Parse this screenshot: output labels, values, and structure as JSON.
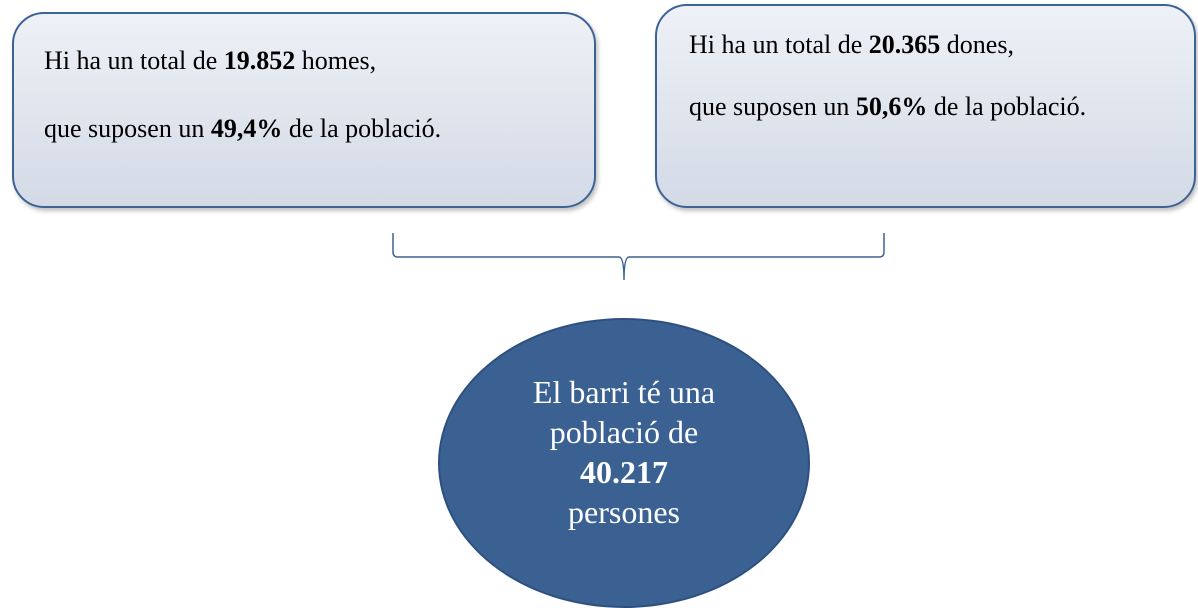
{
  "boxes": [
    {
      "lines": [
        {
          "before": "Hi ha un total de",
          "bold": "19.852",
          "after": "homes,"
        },
        {
          "before": "que suposen un",
          "bold": "49,4%",
          "after": "de la població."
        }
      ]
    },
    {
      "lines": [
        {
          "before": "Hi ha un total de",
          "bold": "20.365",
          "after": "dones,"
        },
        {
          "before": "que suposen un",
          "bold": "50,6%",
          "after": "de la població."
        }
      ]
    }
  ],
  "total": {
    "before": "El barri té una població de",
    "bold": "40.217",
    "after": "persones"
  }
}
